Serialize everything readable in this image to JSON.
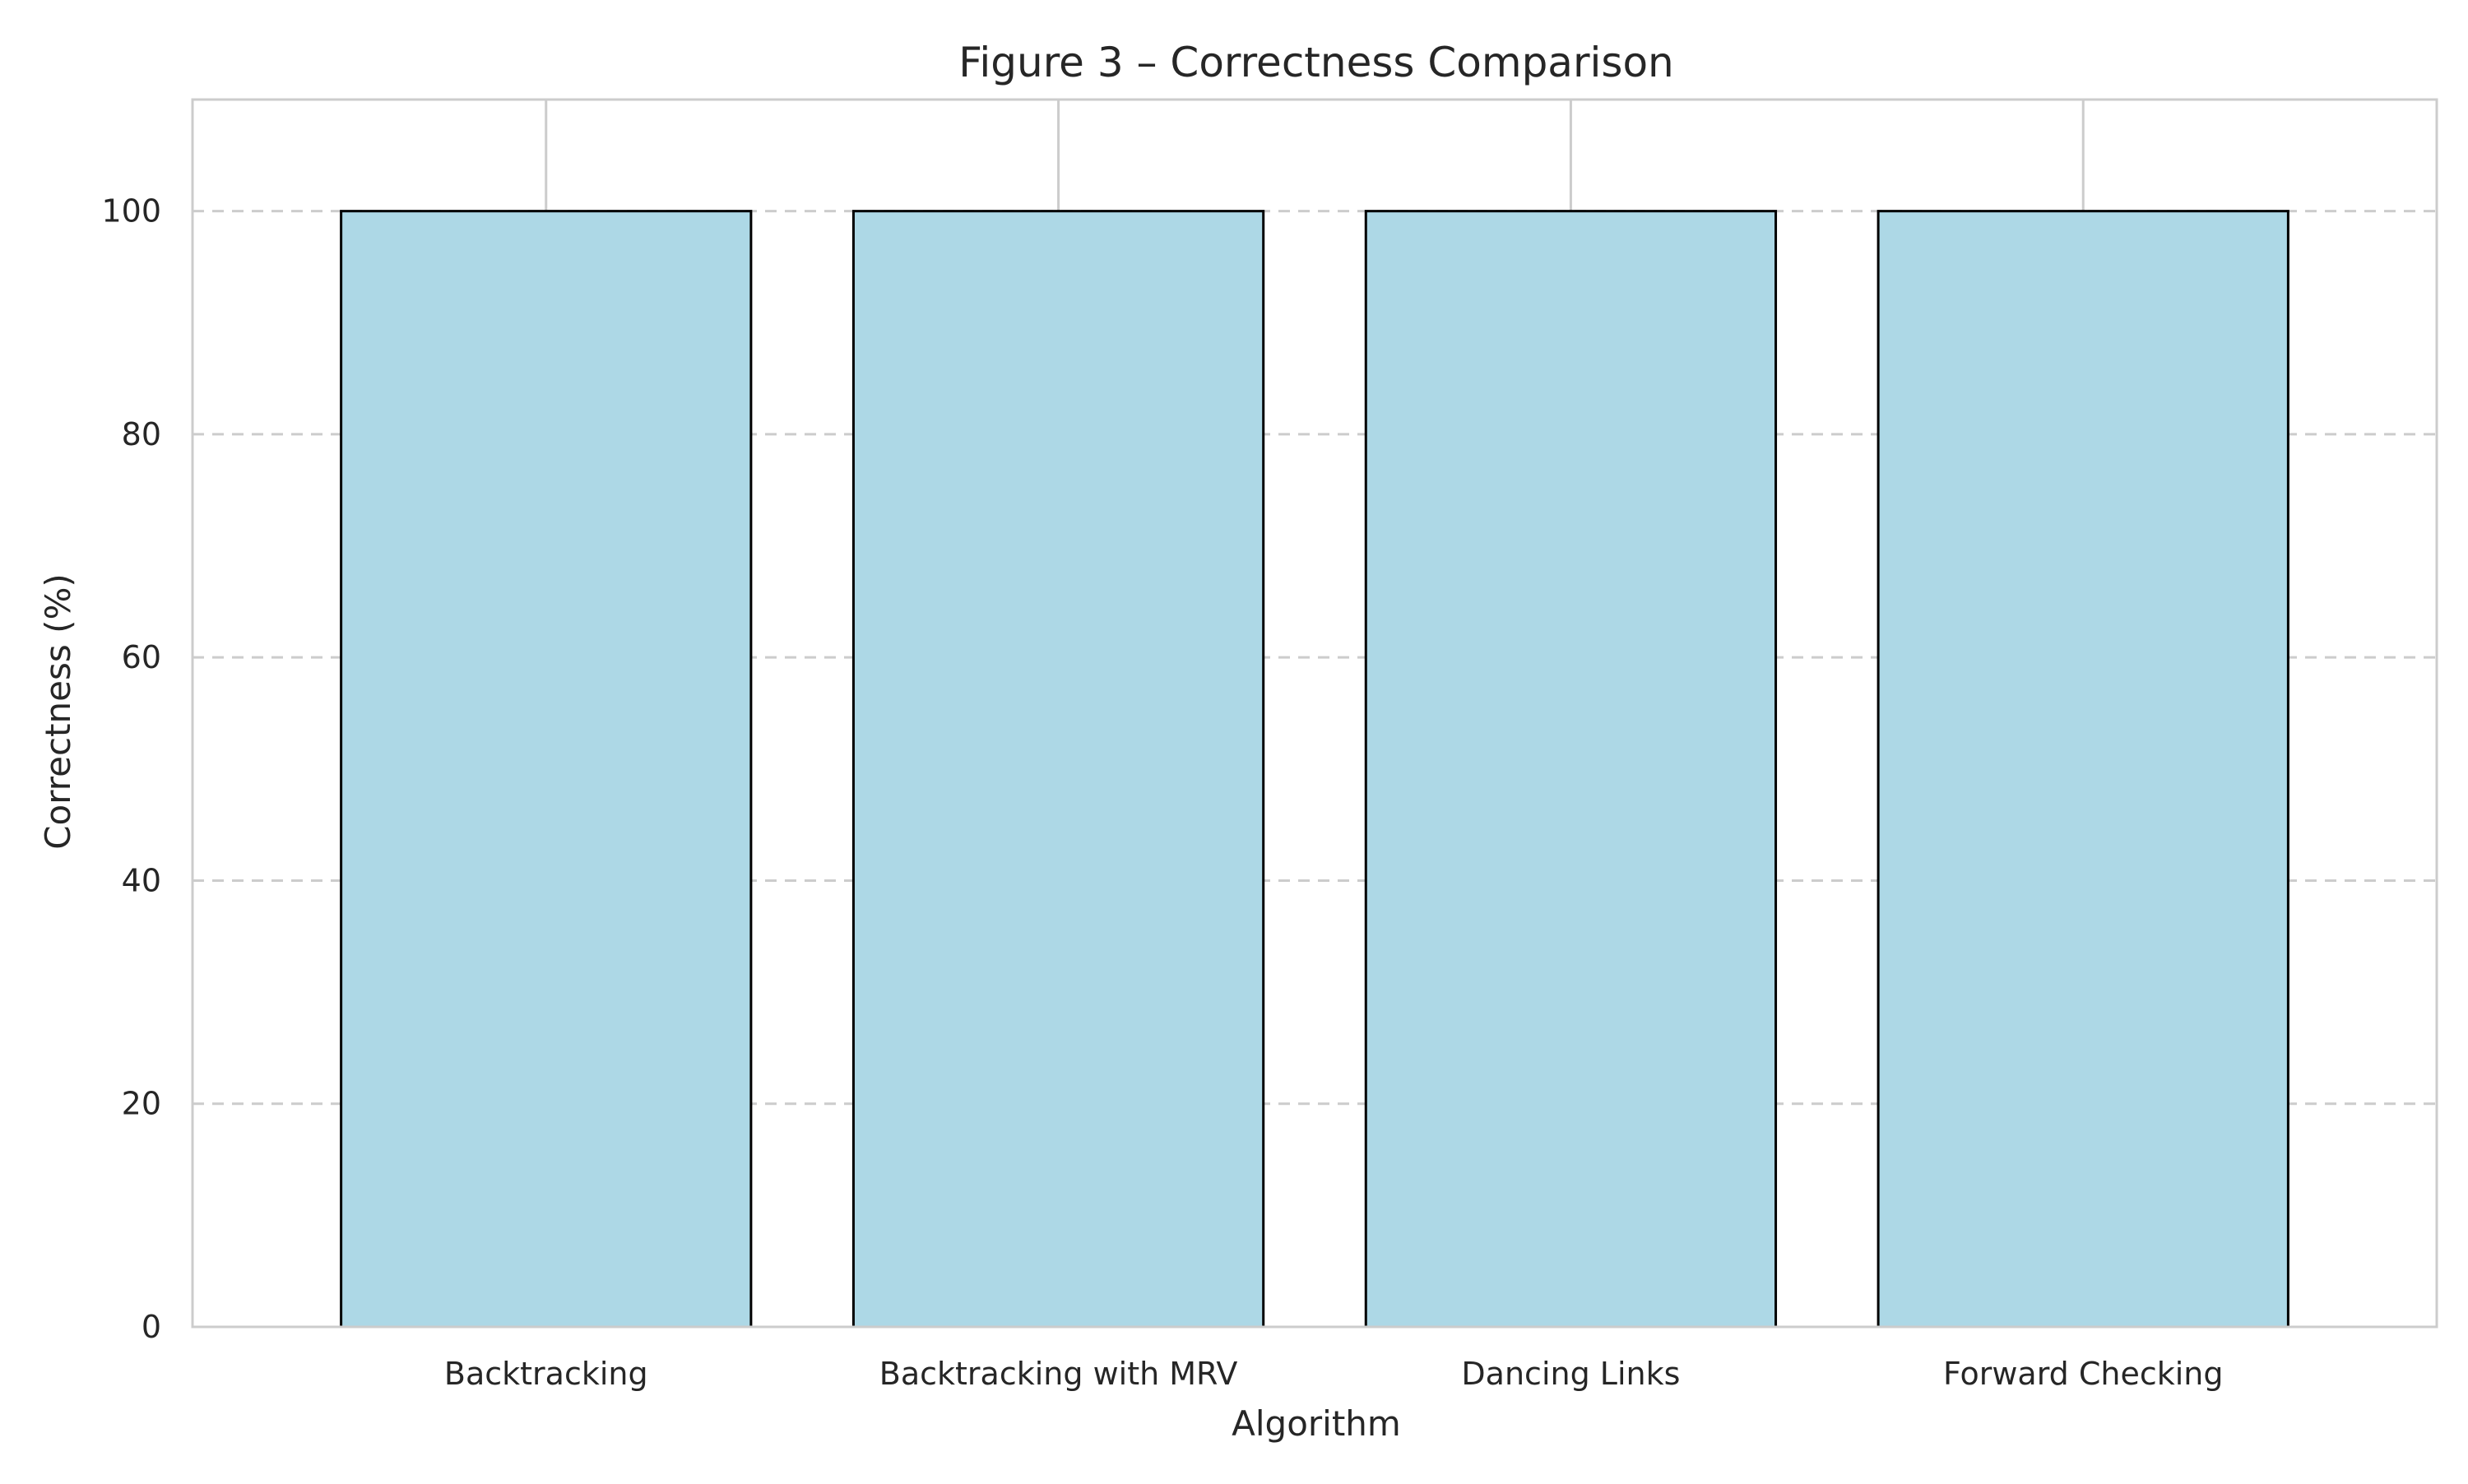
{
  "chart_data": {
    "type": "bar",
    "title": "Figure 3 – Correctness Comparison",
    "xlabel": "Algorithm",
    "ylabel": "Correctness (%)",
    "categories": [
      "Backtracking",
      "Backtracking with MRV",
      "Dancing Links",
      "Forward Checking"
    ],
    "values": [
      100,
      100,
      100,
      100
    ],
    "ylim": [
      0,
      110
    ],
    "yticks": [
      0,
      20,
      40,
      60,
      80,
      100
    ],
    "grid": true,
    "grid_style": "horizontal dashed, vertical solid at category centers",
    "colors": {
      "bar_fill": "#add8e6",
      "bar_edge": "#000000",
      "grid": "#cccccc",
      "axes_edge": "#cccccc",
      "text": "#262626"
    }
  }
}
